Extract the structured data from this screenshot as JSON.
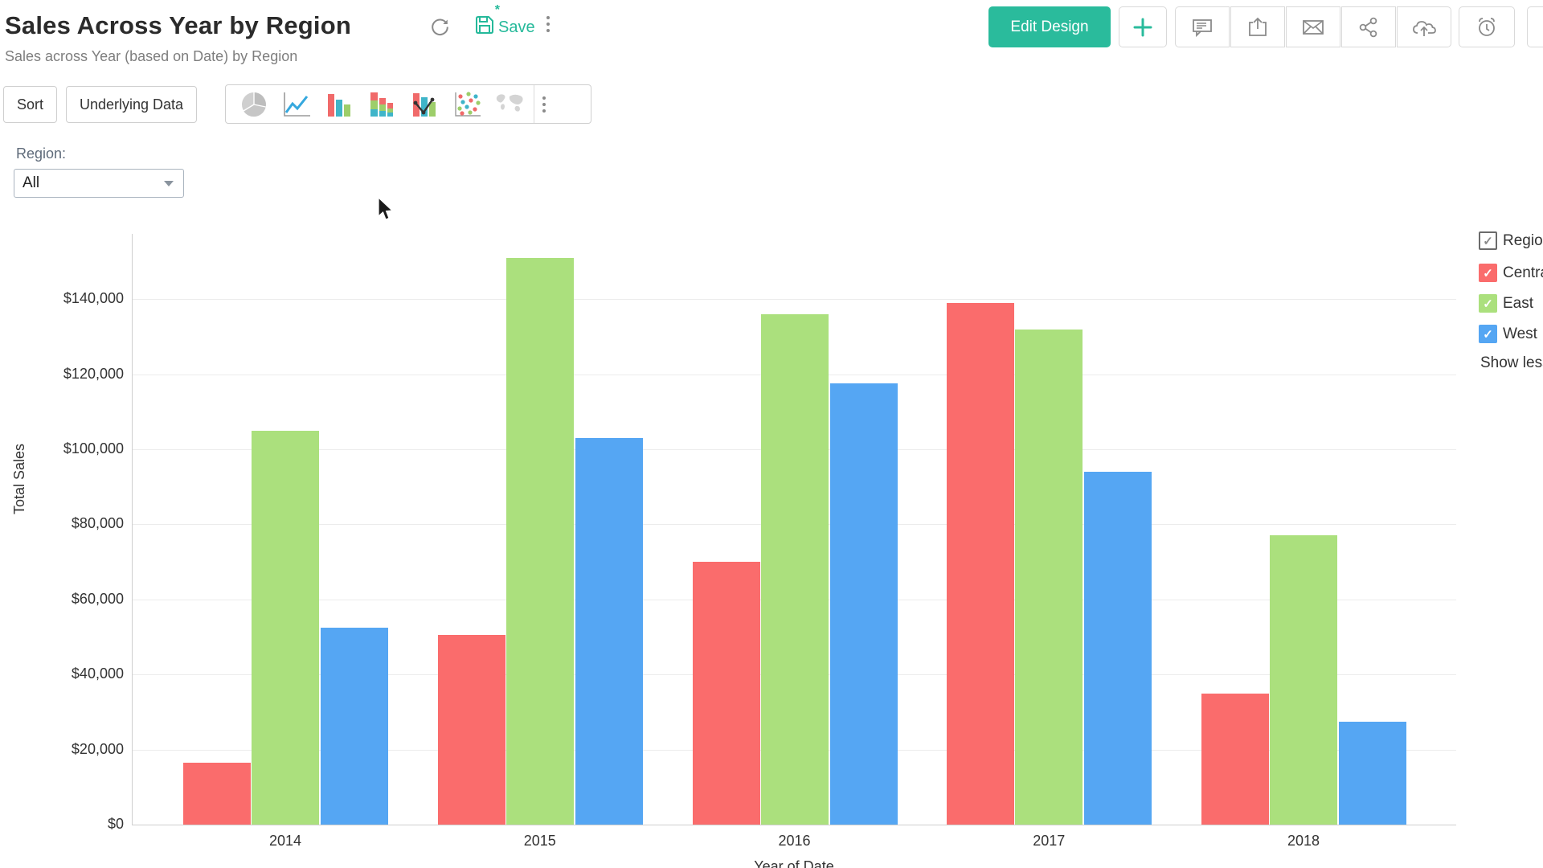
{
  "header": {
    "title": "Sales Across Year by Region",
    "subtitle": "Sales across Year (based on Date) by Region",
    "save_label": "Save",
    "save_star": "*",
    "edit_design_label": "Edit Design",
    "icon_buttons": [
      "refresh-icon",
      "save-icon",
      "kebab-menu-icon",
      "plus-icon",
      "comment-icon",
      "export-icon",
      "envelope-icon",
      "share-icon",
      "cloud-upload-icon",
      "alarm-icon"
    ]
  },
  "toolbar": {
    "sort_label": "Sort",
    "underlying_data_label": "Underlying Data",
    "chart_types": [
      "pie",
      "line",
      "bar",
      "stacked-bar",
      "combo",
      "scatter",
      "map"
    ]
  },
  "filter": {
    "label": "Region:",
    "value": "All"
  },
  "legend": {
    "parent": {
      "label": "Region",
      "checked": true
    },
    "items": [
      {
        "label": "Central",
        "color": "#FA6C6C",
        "checked": true
      },
      {
        "label": "East",
        "color": "#ABE07D",
        "checked": true
      },
      {
        "label": "West",
        "color": "#55A6F3",
        "checked": true
      }
    ],
    "show_less_label": "Show less"
  },
  "chart_data": {
    "type": "bar",
    "title": "Sales Across Year by Region",
    "xlabel": "Year of Date",
    "ylabel": "Total Sales",
    "categories": [
      "2014",
      "2015",
      "2016",
      "2017",
      "2018"
    ],
    "series": [
      {
        "name": "Central",
        "color": "#FA6C6C",
        "values": [
          16500,
          50500,
          70000,
          139000,
          35000
        ]
      },
      {
        "name": "East",
        "color": "#ABE07D",
        "values": [
          105000,
          151000,
          136000,
          132000,
          77000
        ]
      },
      {
        "name": "West",
        "color": "#55A6F3",
        "values": [
          52500,
          103000,
          117500,
          94000,
          27500
        ]
      }
    ],
    "ylim": [
      0,
      157400
    ],
    "ytick_interval": 20000,
    "ytick_prefix": "$",
    "grid": true,
    "legend_position": "right"
  },
  "colors": {
    "accent_teal": "#2ABB9C",
    "icon_gray": "#8A8A8A",
    "grid": "#ECECEC",
    "axis": "#CFCFCF",
    "bar_red": "#FA6C6C",
    "bar_green": "#ABE07D",
    "bar_blue": "#55A6F3"
  }
}
